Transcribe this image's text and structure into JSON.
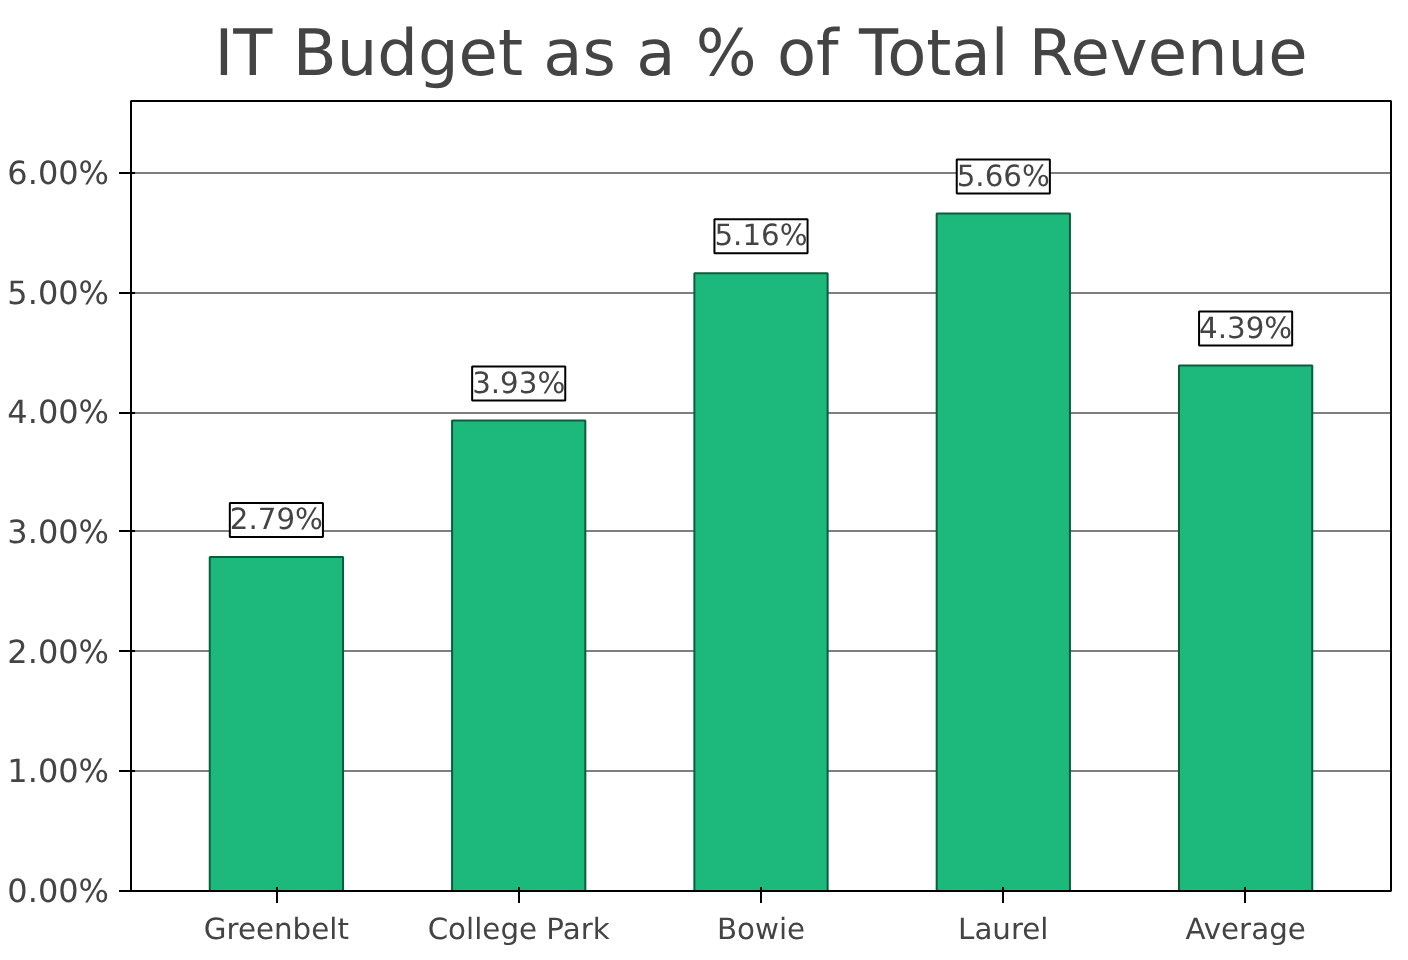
{
  "chart_data": {
    "type": "bar",
    "title": "IT Budget as a % of Total Revenue",
    "categories": [
      "Greenbelt",
      "College Park",
      "Bowie",
      "Laurel",
      "Average"
    ],
    "values": [
      2.79,
      3.93,
      5.16,
      5.66,
      4.39
    ],
    "value_labels": [
      "2.79%",
      "3.93%",
      "5.16%",
      "5.66%",
      "4.39%"
    ],
    "color": "#1db87c",
    "ylim": [
      0,
      6.6
    ],
    "yticks": [
      {
        "value": 0,
        "label": "0.00%"
      },
      {
        "value": 1,
        "label": "1.00%"
      },
      {
        "value": 2,
        "label": "2.00%"
      },
      {
        "value": 3,
        "label": "3.00%"
      },
      {
        "value": 4,
        "label": "4.00%"
      },
      {
        "value": 5,
        "label": "5.00%"
      },
      {
        "value": 6,
        "label": "6.00%"
      }
    ],
    "grid": "y"
  }
}
